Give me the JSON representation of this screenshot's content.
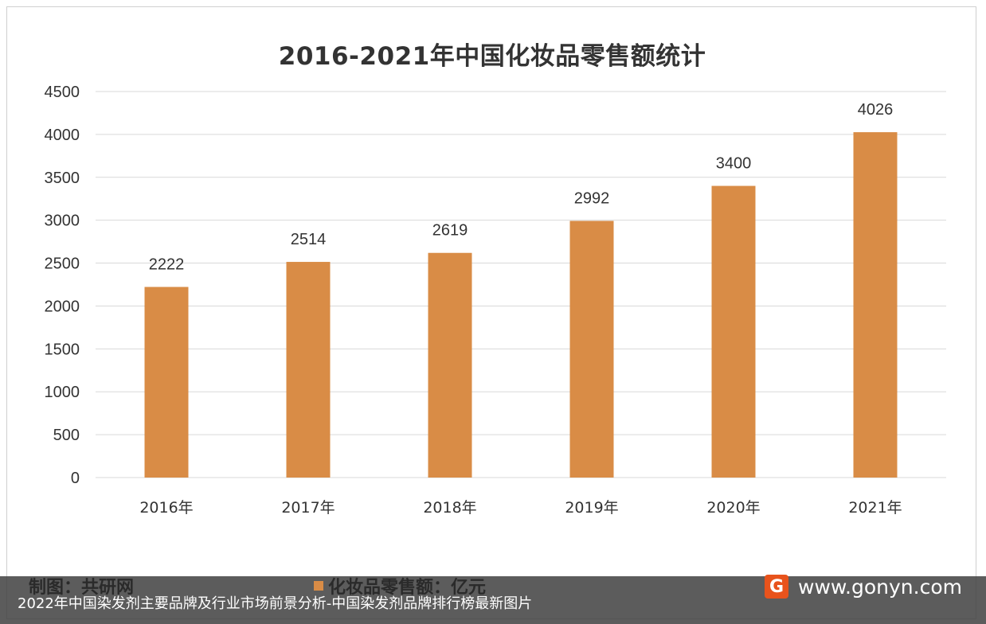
{
  "chart_data": {
    "type": "bar",
    "title": "2016-2021年中国化妆品零售额统计",
    "categories": [
      "2016年",
      "2017年",
      "2018年",
      "2019年",
      "2020年",
      "2021年"
    ],
    "series": [
      {
        "name": "化妆品零售额：亿元",
        "values": [
          2222,
          2514,
          2619,
          2992,
          3400,
          4026
        ],
        "color": "#d98c46"
      }
    ],
    "ylim": [
      0,
      4500
    ],
    "yticks": [
      "0",
      "500",
      "1000",
      "1500",
      "2000",
      "2500",
      "3000",
      "3500",
      "4000",
      "4500"
    ],
    "data_labels": [
      "2222",
      "2514",
      "2619",
      "2992",
      "3400",
      "4026"
    ],
    "grid": true,
    "legend_position": "bottom"
  },
  "footer": {
    "source": "制图：共研网",
    "legend_label": "化妆品零售额：亿元",
    "brand_logo_letter": "G",
    "brand_url": "www.gonyn.com",
    "caption": "2022年中国染发剂主要品牌及行业市场前景分析-中国染发剂品牌排行榜最新图片"
  },
  "colors": {
    "bar": "#d98c46",
    "grid": "#d9d9d9",
    "text": "#333333",
    "brand_logo": "#e8531c"
  },
  "icons": {
    "brand_logo": "gonyn-logo-icon"
  }
}
